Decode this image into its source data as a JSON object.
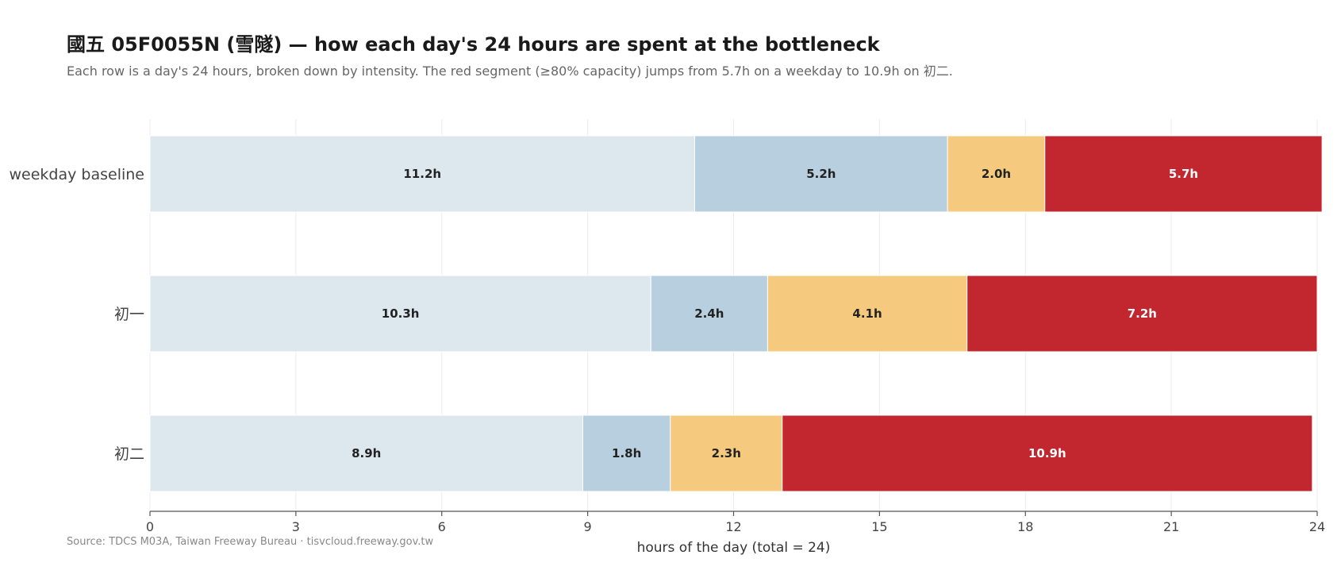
{
  "chart_data": {
    "type": "bar",
    "orientation": "horizontal",
    "stacked": true,
    "title": "國五 05F0055N (雪隧) — how each day's 24 hours are spent at the bottleneck",
    "subtitle": "Each row is a day's 24 hours, broken down by intensity. The red segment (≥80% capacity) jumps from 5.7h on a weekday to 10.9h on 初二.",
    "xlabel": "hours of the day  (total = 24)",
    "ylabel": "",
    "xlim": [
      0,
      24
    ],
    "xticks": [
      0,
      3,
      6,
      9,
      12,
      15,
      18,
      21,
      24
    ],
    "grid": true,
    "legend": "none",
    "categories": [
      "weekday baseline",
      "初一",
      "初二"
    ],
    "series": [
      {
        "color": "#dce7ee",
        "label_color": "#222222",
        "values": [
          11.2,
          10.3,
          8.9
        ]
      },
      {
        "color": "#b8cfdf",
        "label_color": "#222222",
        "values": [
          5.2,
          2.4,
          1.8
        ]
      },
      {
        "color": "#f5c97e",
        "label_color": "#222222",
        "values": [
          2.0,
          4.1,
          2.3
        ]
      },
      {
        "color": "#c2262e",
        "label_color": "#ffffff",
        "values": [
          5.7,
          7.2,
          10.9
        ]
      }
    ],
    "value_suffix": "h",
    "source": "Source: TDCS M03A, Taiwan Freeway Bureau  ·  tisvcloud.freeway.gov.tw"
  }
}
